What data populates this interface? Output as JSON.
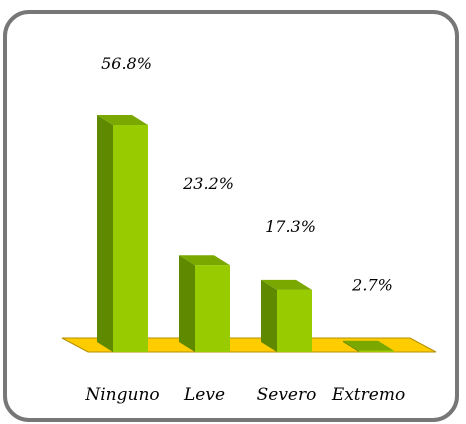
{
  "chart_data": {
    "type": "bar",
    "categories": [
      "Ninguno",
      "Leve",
      "Severo",
      "Extremo"
    ],
    "values": [
      56.8,
      23.2,
      17.3,
      2.7
    ],
    "data_labels": [
      "56.8%",
      "23.2%",
      "17.3%",
      "2.7%"
    ],
    "title": "",
    "xlabel": "",
    "ylabel": "",
    "ylim": [
      0,
      60
    ],
    "grid": false,
    "legend": "none",
    "style": "3d-bars",
    "colors": {
      "bar_front": "#99cc00",
      "bar_side": "#5f8a00",
      "bar_top": "#7aa800",
      "floor": "#ffcc00",
      "floor_edge": "#b38f00",
      "frame": "#777777"
    }
  }
}
